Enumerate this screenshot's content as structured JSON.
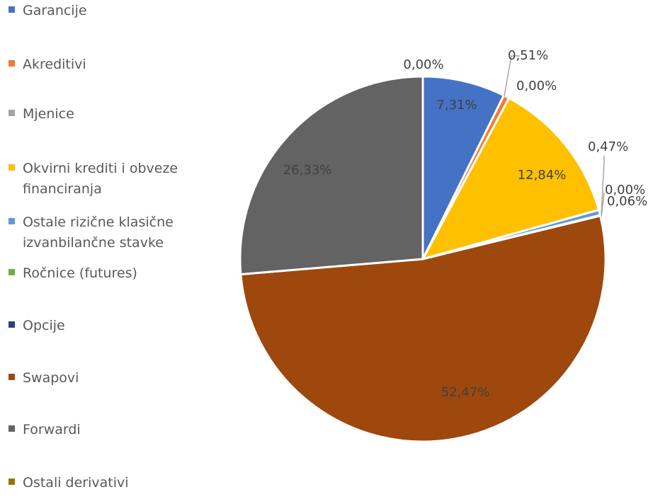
{
  "chart_data": {
    "type": "pie",
    "title": "",
    "legend_position": "left",
    "series": [
      {
        "name": "Garancije",
        "value": 7.31,
        "label": "7,31%",
        "color": "#4472C4"
      },
      {
        "name": "Akreditivi",
        "value": 0.51,
        "label": "0,51%",
        "color": "#ED7D31"
      },
      {
        "name": "Mjenice",
        "value": 0.0,
        "label": "0,00%",
        "color": "#A5A5A5"
      },
      {
        "name": "Okvirni krediti i obveze financiranja",
        "value": 12.84,
        "label": "12,84%",
        "color": "#FFC000"
      },
      {
        "name": "Ostale rizične klasične izvanbilančne stavke",
        "value": 0.47,
        "label": "0,47%",
        "color": "#5B9BD5"
      },
      {
        "name": "Ročnice (futures)",
        "value": 0.0,
        "label": "0,00%",
        "color": "#70AD47"
      },
      {
        "name": "Opcije",
        "value": 0.06,
        "label": "0,06%",
        "color": "#264478"
      },
      {
        "name": "Swapovi",
        "value": 52.47,
        "label": "52,47%",
        "color": "#9E480E"
      },
      {
        "name": "Forwardi",
        "value": 26.33,
        "label": "26,33%",
        "color": "#636363"
      },
      {
        "name": "Ostali derivativi",
        "value": 0.0,
        "label": "0,00%",
        "color": "#997300"
      }
    ]
  }
}
